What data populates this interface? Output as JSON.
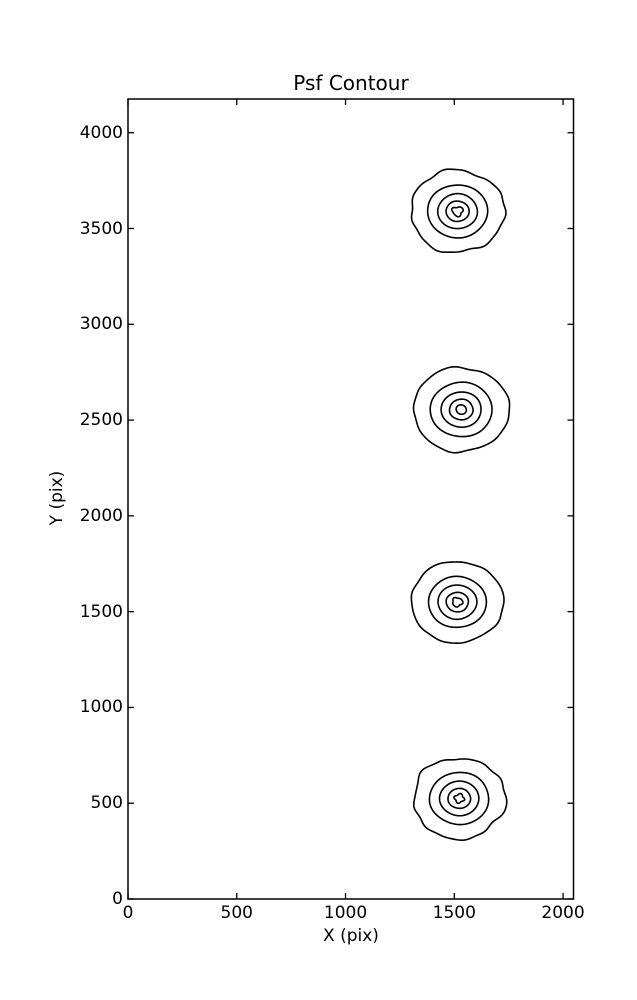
{
  "figure": {
    "title": "Psf Contour",
    "xlabel": "X (pix)",
    "ylabel": "Y (pix)"
  },
  "chart_data": {
    "type": "contour",
    "title": "Psf Contour",
    "xlabel": "X (pix)",
    "ylabel": "Y (pix)",
    "xlim": [
      0,
      2048
    ],
    "ylim": [
      0,
      4176
    ],
    "x_ticks": [
      0,
      500,
      1000,
      1500,
      2000
    ],
    "y_ticks": [
      0,
      500,
      1000,
      1500,
      2000,
      2500,
      3000,
      3500,
      4000
    ],
    "grid": false,
    "legend": null,
    "line_color": "#000000",
    "background_color": "#ffffff",
    "description": "Four concentric-ring PSF contour spots aligned vertically near x=1520, spaced ~1020 pixels apart in y",
    "series": [
      {
        "name": "psf-spot-top",
        "center_x": 1515,
        "center_y": 3590,
        "contour_radii_pix": [
          215,
          138,
          91,
          53,
          24
        ],
        "innermost_shape": "triangle",
        "outline": "wobbly",
        "seed": 3
      },
      {
        "name": "psf-spot-upper-mid",
        "center_x": 1532,
        "center_y": 2555,
        "contour_radii_pix": [
          220,
          142,
          92,
          54,
          24
        ],
        "innermost_shape": "ellipse",
        "outline": "smooth",
        "seed": 7
      },
      {
        "name": "psf-spot-lower-mid",
        "center_x": 1514,
        "center_y": 1550,
        "contour_radii_pix": [
          212,
          133,
          89,
          51,
          23
        ],
        "innermost_shape": "triangle",
        "outline": "smooth",
        "seed": 11
      },
      {
        "name": "psf-spot-bottom",
        "center_x": 1523,
        "center_y": 525,
        "contour_radii_pix": [
          211,
          136,
          90,
          52,
          22
        ],
        "innermost_shape": "diamond",
        "outline": "wobbly",
        "seed": 19
      }
    ]
  }
}
